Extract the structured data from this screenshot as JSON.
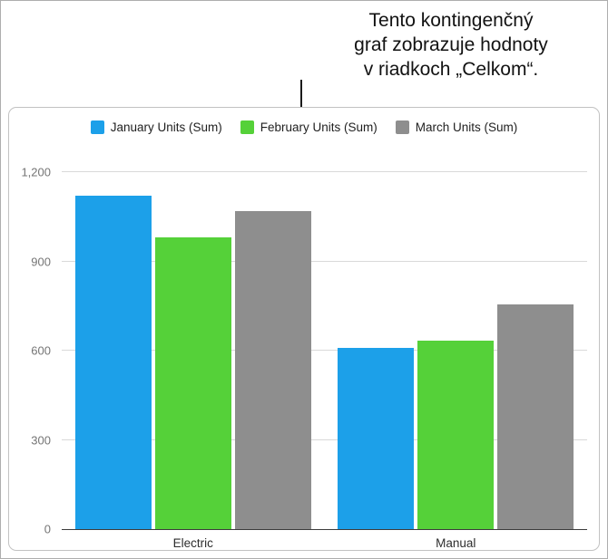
{
  "callout": {
    "lines": [
      "Tento kontingenčný",
      "graf zobrazuje hodnoty",
      "v riadkoch „Celkom“."
    ]
  },
  "chart_data": {
    "type": "bar",
    "title": "",
    "xlabel": "",
    "ylabel": "",
    "categories": [
      "Electric",
      "Manual"
    ],
    "series": [
      {
        "name": "January Units (Sum)",
        "color": "#1CA0E9",
        "values": [
          1120,
          610
        ]
      },
      {
        "name": "February Units (Sum)",
        "color": "#55D139",
        "values": [
          980,
          635
        ]
      },
      {
        "name": "March Units (Sum)",
        "color": "#8E8E8E",
        "values": [
          1070,
          755
        ]
      }
    ],
    "ylim": [
      0,
      1200
    ],
    "yticks": [
      {
        "value": 0,
        "label": "0"
      },
      {
        "value": 300,
        "label": "300"
      },
      {
        "value": 600,
        "label": "600"
      },
      {
        "value": 900,
        "label": "900"
      },
      {
        "value": 1200,
        "label": "1,200"
      }
    ],
    "grid": "horizontal",
    "legend_position": "top"
  }
}
